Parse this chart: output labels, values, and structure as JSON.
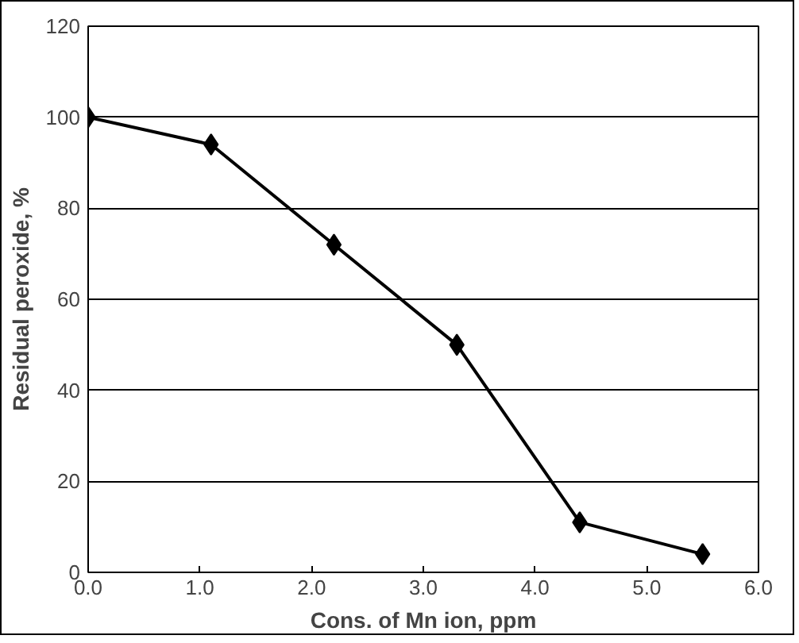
{
  "chart_data": {
    "type": "line",
    "xlabel": "Cons. of Mn ion, ppm",
    "ylabel": "Residual peroxide, %",
    "x": [
      0,
      1.1,
      2.2,
      3.3,
      4.4,
      5.5
    ],
    "series": [
      {
        "color": "#000000",
        "values": [
          100,
          94,
          72,
          50,
          11,
          4
        ]
      }
    ],
    "xlim": [
      0,
      6
    ],
    "ylim": [
      0,
      120
    ],
    "xticks": [
      {
        "value": 0,
        "label": "0.0"
      },
      {
        "value": 1,
        "label": "1.0"
      },
      {
        "value": 2,
        "label": "2.0"
      },
      {
        "value": 3,
        "label": "3.0"
      },
      {
        "value": 4,
        "label": "4.0"
      },
      {
        "value": 5,
        "label": "5.0"
      },
      {
        "value": 6,
        "label": "6.0"
      }
    ],
    "yticks": [
      0,
      20,
      40,
      60,
      80,
      100,
      120
    ],
    "grid": "y",
    "marker": "diamond",
    "line_style": "solid"
  }
}
